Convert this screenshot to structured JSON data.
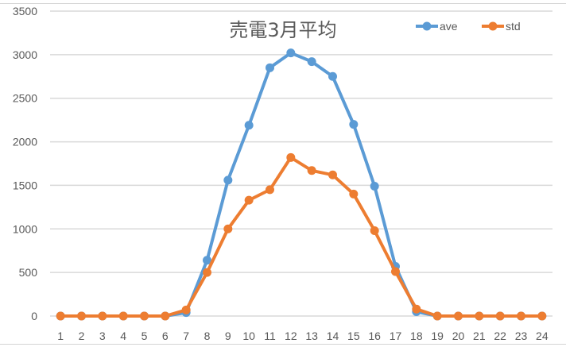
{
  "chart_data": {
    "type": "line",
    "title": "売電3月平均",
    "xlabel": "",
    "ylabel": "",
    "ylim": [
      0,
      3500
    ],
    "yticks": [
      0,
      500,
      1000,
      1500,
      2000,
      2500,
      3000,
      3500
    ],
    "grid": true,
    "legend_position": "top-right",
    "x": [
      1,
      2,
      3,
      4,
      5,
      6,
      7,
      8,
      9,
      10,
      11,
      12,
      13,
      14,
      15,
      16,
      17,
      18,
      19,
      20,
      21,
      22,
      23,
      24
    ],
    "series": [
      {
        "name": "ave",
        "color": "#5b9bd5",
        "values": [
          0,
          0,
          0,
          0,
          0,
          0,
          40,
          640,
          1560,
          2190,
          2850,
          3020,
          2920,
          2750,
          2200,
          1490,
          570,
          50,
          0,
          0,
          0,
          0,
          0,
          0
        ]
      },
      {
        "name": "std",
        "color": "#ed7d31",
        "values": [
          0,
          0,
          0,
          0,
          0,
          0,
          70,
          500,
          1000,
          1330,
          1450,
          1820,
          1670,
          1620,
          1400,
          980,
          510,
          80,
          0,
          0,
          0,
          0,
          0,
          0
        ]
      }
    ]
  }
}
